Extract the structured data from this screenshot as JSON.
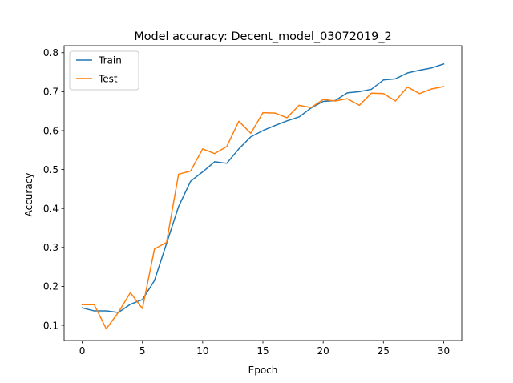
{
  "chart_data": {
    "type": "line",
    "title": "Model accuracy: Decent_model_03072019_2",
    "xlabel": "Epoch",
    "ylabel": "Accuracy",
    "xlim": [
      -1.5,
      31.5
    ],
    "ylim": [
      0.061,
      0.818
    ],
    "xticks": [
      0,
      5,
      10,
      15,
      20,
      25,
      30
    ],
    "yticks": [
      0.1,
      0.2,
      0.3,
      0.4,
      0.5,
      0.6,
      0.7,
      0.8
    ],
    "legend_position": "upper-left",
    "grid": false,
    "x": [
      0,
      1,
      2,
      3,
      4,
      5,
      6,
      7,
      8,
      9,
      10,
      11,
      12,
      13,
      14,
      15,
      16,
      17,
      18,
      19,
      20,
      21,
      22,
      23,
      24,
      25,
      26,
      27,
      28,
      29,
      30
    ],
    "series": [
      {
        "name": "Train",
        "color": "#1f77b4",
        "values": [
          0.145,
          0.137,
          0.137,
          0.133,
          0.154,
          0.166,
          0.215,
          0.31,
          0.405,
          0.47,
          0.494,
          0.52,
          0.516,
          0.553,
          0.584,
          0.6,
          0.613,
          0.625,
          0.635,
          0.658,
          0.675,
          0.677,
          0.697,
          0.7,
          0.706,
          0.73,
          0.733,
          0.748,
          0.755,
          0.761,
          0.771
        ]
      },
      {
        "name": "Test",
        "color": "#ff7f0e",
        "values": [
          0.153,
          0.153,
          0.091,
          0.133,
          0.184,
          0.143,
          0.296,
          0.313,
          0.488,
          0.496,
          0.553,
          0.541,
          0.559,
          0.624,
          0.593,
          0.646,
          0.645,
          0.633,
          0.665,
          0.659,
          0.68,
          0.676,
          0.682,
          0.665,
          0.696,
          0.695,
          0.676,
          0.712,
          0.695,
          0.707,
          0.713
        ]
      }
    ]
  }
}
